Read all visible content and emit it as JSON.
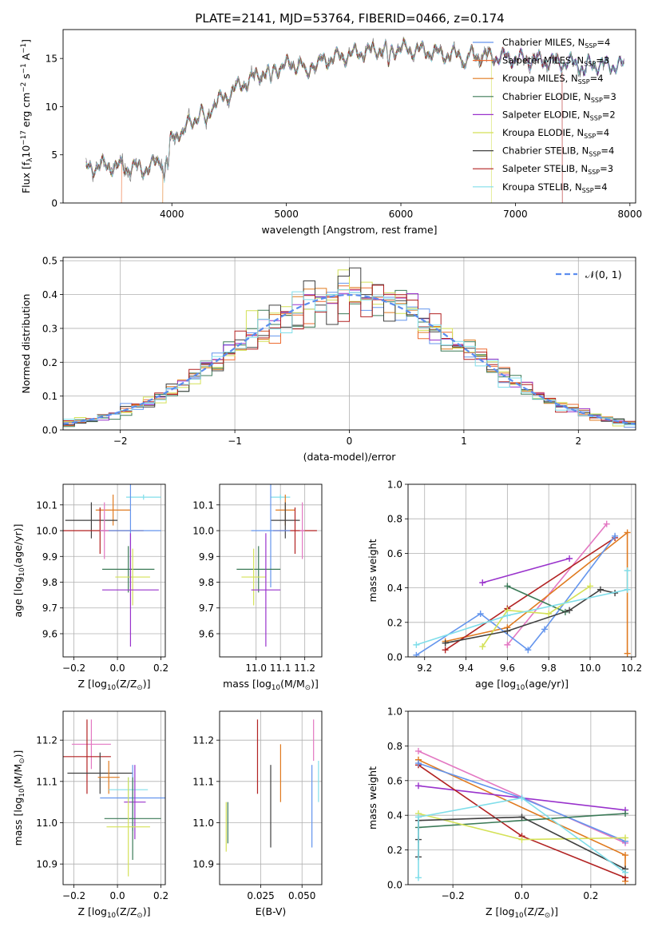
{
  "title": "PLATE=2141, MJD=53764, FIBERID=0466, z=0.174",
  "chart_data": [
    {
      "id": "spectrum",
      "type": "line",
      "xlabel": "wavelength [Angstrom, rest frame]",
      "ylabel": "Flux [f$_\\lambda$10$^{-17}$ erg cm$^{-2}$ s$^{-1}$ A$^{-1}$]",
      "xlim": [
        3050,
        8050
      ],
      "ylim": [
        0,
        18
      ],
      "xticks": [
        4000,
        5000,
        6000,
        7000,
        8000
      ],
      "yticks": [
        0,
        5,
        10,
        15
      ],
      "grid": false,
      "legend_position": "right",
      "observed_color": "#808080",
      "continuum": {
        "x": [
          3250,
          3400,
          3600,
          3800,
          3950,
          4000,
          4200,
          4400,
          4600,
          4800,
          5000,
          5200,
          5400,
          5600,
          5800,
          6000,
          6200,
          6400,
          6600,
          6800,
          7000,
          7200,
          7400,
          7600,
          7800,
          8000
        ],
        "y": [
          3.6,
          3.9,
          3.7,
          3.6,
          5.0,
          6.8,
          8.8,
          10.5,
          12.2,
          13.6,
          14.3,
          14.5,
          15.0,
          15.5,
          15.9,
          16.0,
          15.8,
          15.4,
          15.3,
          15.2,
          15.0,
          14.8,
          14.6,
          14.4,
          14.3,
          14.3
        ]
      },
      "series": [
        {
          "name": "Chabrier MILES, N$_{SSP}$=4",
          "color": "#6495ED"
        },
        {
          "name": "Salpeter MILES, N$_{SSP}$=3",
          "color": "#ED6B30"
        },
        {
          "name": "Kroupa MILES, N$_{SSP}$=4",
          "color": "#E07A1F"
        },
        {
          "name": "Chabrier ELODIE, N$_{SSP}$=3",
          "color": "#3B7A57"
        },
        {
          "name": "Salpeter ELODIE, N$_{SSP}$=2",
          "color": "#9932CC"
        },
        {
          "name": "Kroupa ELODIE, N$_{SSP}$=4",
          "color": "#D4E157"
        },
        {
          "name": "Chabrier STELIB, N$_{SSP}$=4",
          "color": "#404040"
        },
        {
          "name": "Salpeter STELIB, N$_{SSP}$=3",
          "color": "#B22222"
        },
        {
          "name": "Kroupa STELIB, N$_{SSP}$=4",
          "color": "#80DEEA"
        }
      ]
    },
    {
      "id": "residuals",
      "type": "step",
      "xlabel": "(data-model)/error",
      "ylabel": "Normed distribution",
      "xlim": [
        -2.5,
        2.5
      ],
      "ylim": [
        0,
        0.51
      ],
      "xticks": [
        -2,
        -1,
        0,
        1,
        2
      ],
      "yticks": [
        0.0,
        0.1,
        0.2,
        0.3,
        0.4,
        0.5
      ],
      "grid": true,
      "legend_position": "top-right",
      "normal_curve_label": "$\\mathcal{N}(0,1)$",
      "normal_curve_color": "#5B8DEF",
      "bin_width": 0.1
    },
    {
      "id": "age-vs-Z",
      "type": "errorbar",
      "xlabel": "Z [log$_{10}$(Z/Z$_\\odot$)]",
      "ylabel": "age  [log$_{10}$(age/yr)]",
      "xlim": [
        -0.25,
        0.22
      ],
      "ylim": [
        9.51,
        10.18
      ],
      "xticks": [
        -0.2,
        0.0,
        0.2
      ],
      "yticks": [
        9.6,
        9.7,
        9.8,
        9.9,
        10.0,
        10.1
      ],
      "grid": true,
      "points": [
        {
          "x": 0.12,
          "y": 10.13,
          "xerr": 0.08,
          "yerr": 0.01,
          "color": "#80DEEA"
        },
        {
          "x": -0.02,
          "y": 10.08,
          "xerr": 0.08,
          "yerr": 0.06,
          "color": "#E07A1F"
        },
        {
          "x": -0.12,
          "y": 10.04,
          "xerr": 0.12,
          "yerr": 0.07,
          "color": "#404040"
        },
        {
          "x": -0.08,
          "y": 10.0,
          "xerr": 0.2,
          "yerr": 0.09,
          "color": "#B22222"
        },
        {
          "x": 0.06,
          "y": 10.0,
          "xerr": 0.14,
          "yerr": 0.22,
          "color": "#6495ED"
        },
        {
          "x": 0.05,
          "y": 9.85,
          "xerr": 0.12,
          "yerr": 0.09,
          "color": "#3B7A57"
        },
        {
          "x": 0.07,
          "y": 9.82,
          "xerr": 0.08,
          "yerr": 0.11,
          "color": "#D4E157"
        },
        {
          "x": 0.06,
          "y": 9.77,
          "xerr": 0.13,
          "yerr": 0.22,
          "color": "#9932CC"
        },
        {
          "x": -0.06,
          "y": 10.0,
          "xerr": 0.02,
          "yerr": 0.11,
          "color": "#E377C2"
        }
      ]
    },
    {
      "id": "age-vs-mass",
      "type": "errorbar",
      "xlabel": "mass [log$_{10}$(M/M$_\\odot$)]",
      "ylabel": "",
      "xlim": [
        10.85,
        11.27
      ],
      "ylim": [
        9.51,
        10.18
      ],
      "xticks": [
        11.0,
        11.1,
        11.2
      ],
      "yticks": [
        9.6,
        9.7,
        9.8,
        9.9,
        10.0,
        10.1
      ],
      "grid": true,
      "points": [
        {
          "x": 11.1,
          "y": 10.13,
          "xerr": 0.04,
          "yerr": 0.01,
          "color": "#80DEEA"
        },
        {
          "x": 11.12,
          "y": 10.08,
          "xerr": 0.04,
          "yerr": 0.06,
          "color": "#E07A1F"
        },
        {
          "x": 11.12,
          "y": 10.04,
          "xerr": 0.06,
          "yerr": 0.07,
          "color": "#404040"
        },
        {
          "x": 11.16,
          "y": 10.0,
          "xerr": 0.09,
          "yerr": 0.09,
          "color": "#B22222"
        },
        {
          "x": 11.06,
          "y": 10.0,
          "xerr": 0.08,
          "yerr": 0.22,
          "color": "#6495ED"
        },
        {
          "x": 11.01,
          "y": 9.85,
          "xerr": 0.09,
          "yerr": 0.09,
          "color": "#3B7A57"
        },
        {
          "x": 10.99,
          "y": 9.82,
          "xerr": 0.05,
          "yerr": 0.11,
          "color": "#D4E157"
        },
        {
          "x": 11.04,
          "y": 9.77,
          "xerr": 0.06,
          "yerr": 0.22,
          "color": "#9932CC"
        },
        {
          "x": 11.19,
          "y": 10.0,
          "xerr": 0.01,
          "yerr": 0.11,
          "color": "#E377C2"
        }
      ]
    },
    {
      "id": "massweight-vs-age",
      "type": "line",
      "xlabel": "age  [log$_{10}$(age/yr)]",
      "ylabel": "mass weight",
      "xlim": [
        9.12,
        10.22
      ],
      "ylim": [
        0.0,
        1.0
      ],
      "xticks": [
        9.2,
        9.4,
        9.6,
        9.8,
        10.0,
        10.2
      ],
      "yticks": [
        0.0,
        0.2,
        0.4,
        0.6,
        0.8,
        1.0
      ],
      "grid": true,
      "series": [
        {
          "color": "#E377C2",
          "x": [
            9.6,
            10.08
          ],
          "y": [
            0.07,
            0.77
          ]
        },
        {
          "color": "#E07A1F",
          "x": [
            9.3,
            9.6,
            10.18,
            10.18
          ],
          "y": [
            0.09,
            0.17,
            0.72,
            0.02
          ]
        },
        {
          "color": "#9932CC",
          "x": [
            9.48,
            9.9
          ],
          "y": [
            0.43,
            0.57
          ]
        },
        {
          "color": "#B22222",
          "x": [
            9.3,
            9.6,
            10.12
          ],
          "y": [
            0.04,
            0.28,
            0.69
          ]
        },
        {
          "color": "#6495ED",
          "x": [
            9.16,
            9.47,
            9.7,
            9.78,
            10.12
          ],
          "y": [
            0.01,
            0.25,
            0.04,
            0.16,
            0.7
          ]
        },
        {
          "color": "#3B7A57",
          "x": [
            9.6,
            9.88
          ],
          "y": [
            0.41,
            0.26
          ]
        },
        {
          "color": "#D4E157",
          "x": [
            9.48,
            9.6,
            9.8,
            10.0
          ],
          "y": [
            0.06,
            0.27,
            0.25,
            0.41
          ]
        },
        {
          "color": "#404040",
          "x": [
            9.3,
            9.6,
            9.9,
            10.05,
            10.12
          ],
          "y": [
            0.08,
            0.15,
            0.27,
            0.39,
            0.37
          ]
        },
        {
          "color": "#80DEEA",
          "x": [
            9.16,
            9.6,
            10.18,
            10.18
          ],
          "y": [
            0.07,
            0.24,
            0.39,
            0.5
          ]
        }
      ]
    },
    {
      "id": "mass-vs-Z",
      "type": "errorbar",
      "xlabel": "Z [log$_{10}$(Z/Z$_\\odot$)]",
      "ylabel": "mass [log$_{10}$(M/M$_\\odot$)]",
      "xlim": [
        -0.25,
        0.22
      ],
      "ylim": [
        10.85,
        11.27
      ],
      "xticks": [
        -0.2,
        0.0,
        0.2
      ],
      "yticks": [
        10.9,
        11.0,
        11.1,
        11.2
      ],
      "grid": true,
      "points": [
        {
          "x": -0.12,
          "y": 11.19,
          "xerr": 0.09,
          "yerr": 0.06,
          "color": "#E377C2"
        },
        {
          "x": -0.14,
          "y": 11.16,
          "xerr": 0.11,
          "yerr": 0.09,
          "color": "#B22222"
        },
        {
          "x": -0.08,
          "y": 11.12,
          "xerr": 0.15,
          "yerr": 0.05,
          "color": "#404040"
        },
        {
          "x": -0.04,
          "y": 11.11,
          "xerr": 0.05,
          "yerr": 0.04,
          "color": "#E07A1F"
        },
        {
          "x": 0.05,
          "y": 11.08,
          "xerr": 0.09,
          "yerr": 0.03,
          "color": "#80DEEA"
        },
        {
          "x": 0.07,
          "y": 11.06,
          "xerr": 0.15,
          "yerr": 0.08,
          "color": "#6495ED"
        },
        {
          "x": 0.08,
          "y": 11.05,
          "xerr": 0.05,
          "yerr": 0.09,
          "color": "#9932CC"
        },
        {
          "x": 0.07,
          "y": 11.01,
          "xerr": 0.13,
          "yerr": 0.1,
          "color": "#3B7A57"
        },
        {
          "x": 0.05,
          "y": 10.99,
          "xerr": 0.1,
          "yerr": 0.12,
          "color": "#D4E157"
        }
      ]
    },
    {
      "id": "mass-vs-EBV",
      "type": "errorbar",
      "xlabel": "E(B-V)",
      "ylabel": "",
      "xlim": [
        0.0,
        0.062
      ],
      "ylim": [
        10.85,
        11.27
      ],
      "xticks": [
        0.025,
        0.05
      ],
      "yticks": [
        10.9,
        11.0,
        11.1,
        11.2
      ],
      "grid": true,
      "points": [
        {
          "x": 0.004,
          "y": 10.99,
          "xerr": 0,
          "yerr": 0.06,
          "color": "#D4E157"
        },
        {
          "x": 0.005,
          "y": 11.0,
          "xerr": 0,
          "yerr": 0.05,
          "color": "#3B7A57"
        },
        {
          "x": 0.023,
          "y": 11.16,
          "xerr": 0,
          "yerr": 0.09,
          "color": "#B22222"
        },
        {
          "x": 0.031,
          "y": 11.04,
          "xerr": 0,
          "yerr": 0.1,
          "color": "#404040"
        },
        {
          "x": 0.037,
          "y": 11.12,
          "xerr": 0,
          "yerr": 0.07,
          "color": "#E07A1F"
        },
        {
          "x": 0.056,
          "y": 11.04,
          "xerr": 0,
          "yerr": 0.1,
          "color": "#6495ED"
        },
        {
          "x": 0.057,
          "y": 11.2,
          "xerr": 0,
          "yerr": 0.05,
          "color": "#E377C2"
        },
        {
          "x": 0.06,
          "y": 11.1,
          "xerr": 0,
          "yerr": 0.05,
          "color": "#80DEEA"
        }
      ]
    },
    {
      "id": "massweight-vs-Z",
      "type": "line",
      "xlabel": "Z [log$_{10}$(Z/Z$_\\odot$)]",
      "ylabel": "mass weight",
      "xlim": [
        -0.33,
        0.33
      ],
      "ylim": [
        0.0,
        1.0
      ],
      "xticks": [
        -0.2,
        0.0,
        0.2
      ],
      "yticks": [
        0.0,
        0.2,
        0.4,
        0.6,
        0.8,
        1.0
      ],
      "grid": true,
      "series": [
        {
          "color": "#E377C2",
          "x": [
            -0.3,
            0.3
          ],
          "y": [
            0.77,
            0.24
          ]
        },
        {
          "color": "#E07A1F",
          "x": [
            -0.3,
            0.3,
            0.3
          ],
          "y": [
            0.72,
            0.17,
            0.02
          ]
        },
        {
          "color": "#9932CC",
          "x": [
            -0.3,
            0.3
          ],
          "y": [
            0.57,
            0.43
          ]
        },
        {
          "color": "#B22222",
          "x": [
            -0.3,
            0.0,
            0.3
          ],
          "y": [
            0.69,
            0.28,
            0.04
          ]
        },
        {
          "color": "#6495ED",
          "x": [
            -0.3,
            0.0,
            0.3
          ],
          "y": [
            0.7,
            0.5,
            0.25
          ]
        },
        {
          "color": "#3B7A57",
          "x": [
            -0.3,
            0.3
          ],
          "y": [
            0.33,
            0.41
          ]
        },
        {
          "color": "#D4E157",
          "x": [
            -0.3,
            0.0,
            0.3
          ],
          "y": [
            0.41,
            0.26,
            0.27
          ]
        },
        {
          "color": "#404040",
          "x": [
            -0.3,
            -0.3,
            -0.3,
            0.0,
            0.3
          ],
          "y": [
            0.16,
            0.26,
            0.37,
            0.39,
            0.09
          ]
        },
        {
          "color": "#80DEEA",
          "x": [
            -0.3,
            -0.3,
            0.0,
            0.3
          ],
          "y": [
            0.04,
            0.39,
            0.5,
            0.07
          ]
        }
      ]
    }
  ]
}
